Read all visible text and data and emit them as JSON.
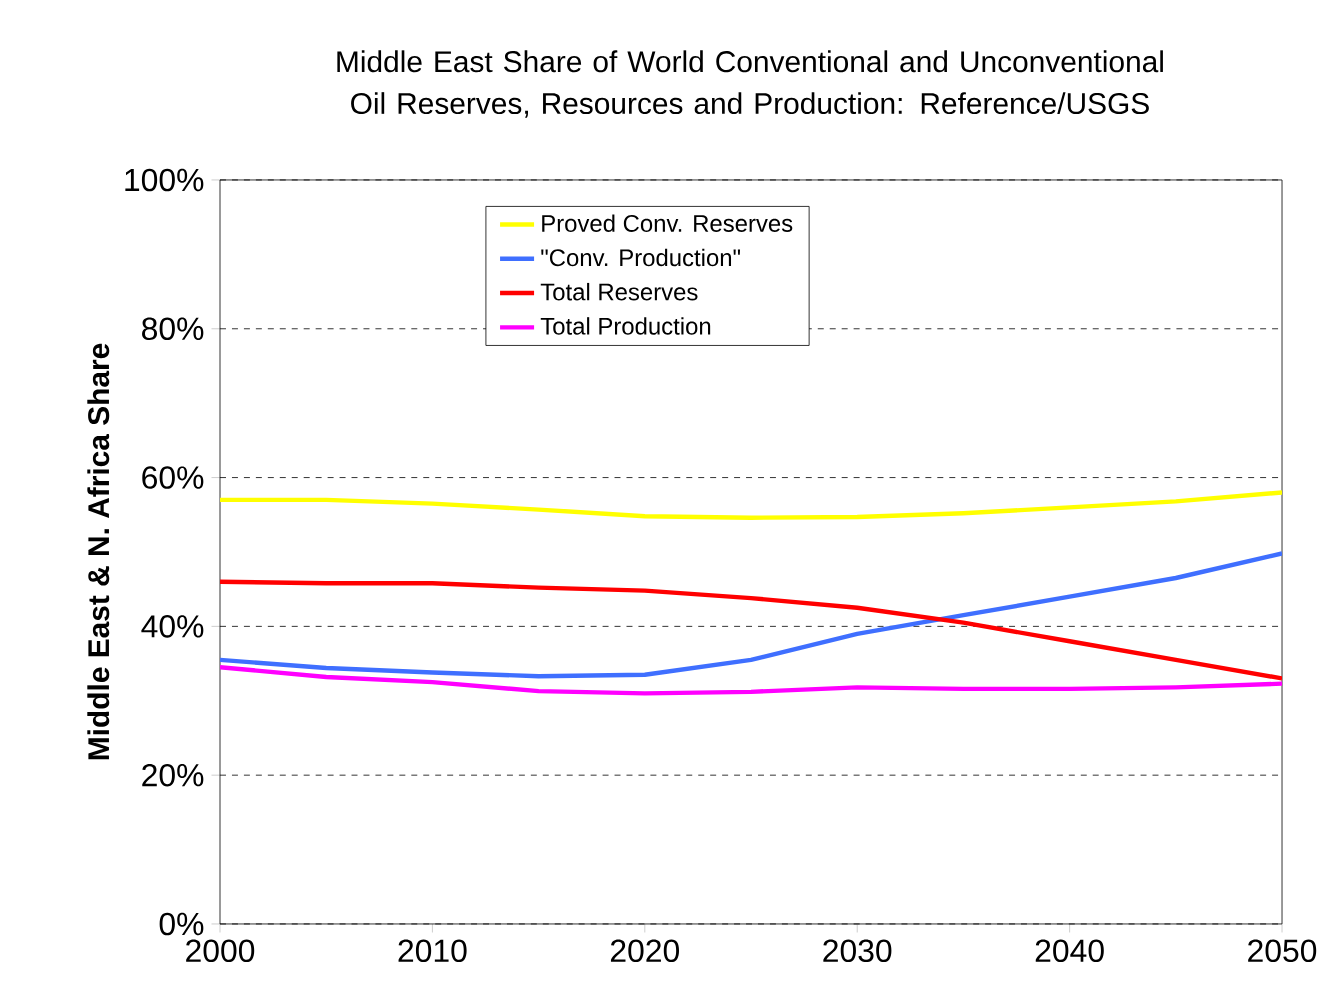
{
  "chart_data": {
    "type": "line",
    "title": "Middle East Share of World Conventional and Unconventional Oil Reserves, Resources and Production: Reference/USGS",
    "ylabel": "Middle East & N. Africa Share",
    "x": [
      2000,
      2005,
      2010,
      2015,
      2020,
      2025,
      2030,
      2035,
      2040,
      2045,
      2050
    ],
    "series": [
      {
        "name": "Proved Conv. Reserves",
        "color": "#ffff00",
        "values": [
          57,
          57,
          56.5,
          55.7,
          54.8,
          54.6,
          54.7,
          55.2,
          56,
          56.8,
          58
        ]
      },
      {
        "name": "\"Conv. Production\"",
        "color": "#3f6fff",
        "values": [
          35.5,
          34.4,
          33.8,
          33.3,
          33.5,
          35.5,
          39,
          41.5,
          44,
          46.5,
          49.8
        ]
      },
      {
        "name": "Total Reserves",
        "color": "#ff0000",
        "values": [
          46,
          45.8,
          45.8,
          45.2,
          44.8,
          43.8,
          42.5,
          40.5,
          38,
          35.5,
          33
        ]
      },
      {
        "name": "Total Production",
        "color": "#ff00ff",
        "values": [
          34.5,
          33.2,
          32.5,
          31.3,
          31,
          31.2,
          31.8,
          31.6,
          31.6,
          31.8,
          32.3
        ]
      }
    ],
    "xlim": [
      2000,
      2050
    ],
    "xticks": [
      2000,
      2010,
      2020,
      2030,
      2040,
      2050
    ],
    "ylim": [
      0,
      100
    ],
    "yticks": [
      {
        "value": 0,
        "label": "0%"
      },
      {
        "value": 20,
        "label": "20%"
      },
      {
        "value": 40,
        "label": "40%"
      },
      {
        "value": 60,
        "label": "60%"
      },
      {
        "value": 80,
        "label": "80%"
      },
      {
        "value": 100,
        "label": "100%"
      }
    ],
    "grid": "y",
    "legend": "top",
    "marker": "none",
    "line_style": "solid"
  }
}
